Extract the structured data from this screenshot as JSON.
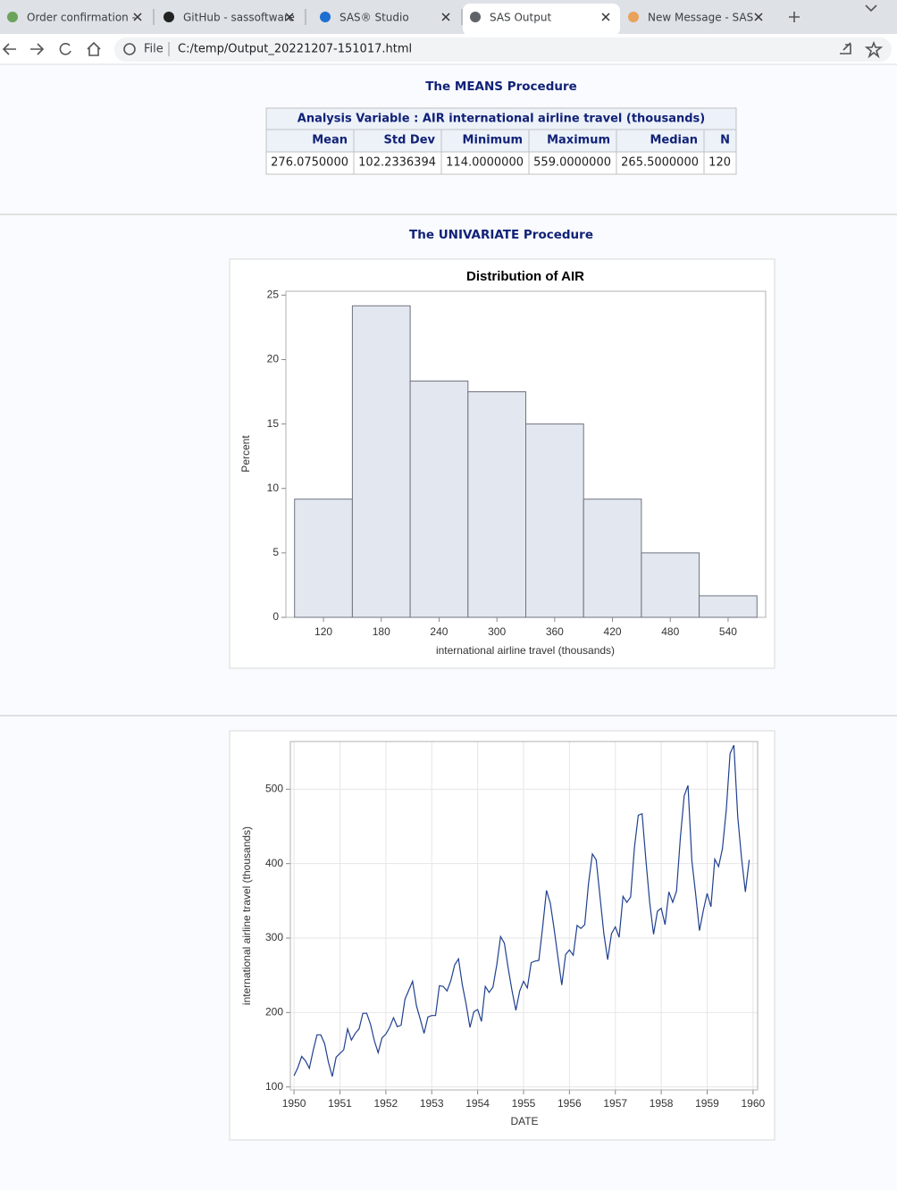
{
  "browser": {
    "tabs": [
      "Order confirmation -",
      "GitHub - sassoftware",
      "SAS® Studio",
      "SAS Output",
      "New Message - SAS"
    ],
    "file_label": "File",
    "url": "C:/temp/Output_20221207-151017.html"
  },
  "means": {
    "title": "The MEANS Procedure",
    "table": {
      "caption": "Analysis Variable : AIR international airline travel (thousands)",
      "headers": [
        "Mean",
        "Std Dev",
        "Minimum",
        "Maximum",
        "Median",
        "N"
      ],
      "rows": [
        [
          "276.0750000",
          "102.2336394",
          "114.0000000",
          "559.0000000",
          "265.5000000",
          "120"
        ]
      ]
    }
  },
  "univariate": {
    "title": "The UNIVARIATE Procedure"
  },
  "chart_data": [
    {
      "type": "histogram",
      "title": "Distribution of AIR",
      "x_label": "international airline travel (thousands)",
      "y_label": "Percent",
      "bins": [
        90,
        150,
        210,
        270,
        330,
        390,
        450,
        510,
        570
      ],
      "values": [
        9.17,
        24.17,
        18.33,
        17.5,
        15,
        9.17,
        5,
        1.67
      ],
      "color": "#e3e7ef",
      "edge_color": "#6e7380",
      "xlim": [
        81,
        579
      ],
      "xticks": [
        120,
        180,
        240,
        300,
        360,
        420,
        480,
        540
      ],
      "ylim": [
        0,
        25.3
      ],
      "yticks": [
        0,
        5,
        10,
        15,
        20,
        25
      ],
      "grid": false
    },
    {
      "type": "line",
      "x_label": "DATE",
      "y_label": "international airline travel (thousands)",
      "color": "#20408f",
      "x": [
        1950,
        1950.083,
        1950.167,
        1950.25,
        1950.333,
        1950.417,
        1950.5,
        1950.583,
        1950.667,
        1950.75,
        1950.833,
        1950.917,
        1951,
        1951.083,
        1951.167,
        1951.25,
        1951.333,
        1951.417,
        1951.5,
        1951.583,
        1951.667,
        1951.75,
        1951.833,
        1951.917,
        1952,
        1952.083,
        1952.167,
        1952.25,
        1952.333,
        1952.417,
        1952.5,
        1952.583,
        1952.667,
        1952.75,
        1952.833,
        1952.917,
        1953,
        1953.083,
        1953.167,
        1953.25,
        1953.333,
        1953.417,
        1953.5,
        1953.583,
        1953.667,
        1953.75,
        1953.833,
        1953.917,
        1954,
        1954.083,
        1954.167,
        1954.25,
        1954.333,
        1954.417,
        1954.5,
        1954.583,
        1954.667,
        1954.75,
        1954.833,
        1954.917,
        1955,
        1955.083,
        1955.167,
        1955.25,
        1955.333,
        1955.417,
        1955.5,
        1955.583,
        1955.667,
        1955.75,
        1955.833,
        1955.917,
        1956,
        1956.083,
        1956.167,
        1956.25,
        1956.333,
        1956.417,
        1956.5,
        1956.583,
        1956.667,
        1956.75,
        1956.833,
        1956.917,
        1957,
        1957.083,
        1957.167,
        1957.25,
        1957.333,
        1957.417,
        1957.5,
        1957.583,
        1957.667,
        1957.75,
        1957.833,
        1957.917,
        1958,
        1958.083,
        1958.167,
        1958.25,
        1958.333,
        1958.417,
        1958.5,
        1958.583,
        1958.667,
        1958.75,
        1958.833,
        1958.917,
        1959,
        1959.083,
        1959.167,
        1959.25,
        1959.333,
        1959.417,
        1959.5,
        1959.583,
        1959.667,
        1959.75,
        1959.833,
        1959.917
      ],
      "values": [
        115,
        126,
        141,
        135,
        125,
        149,
        170,
        170,
        158,
        133,
        114,
        140,
        145,
        150,
        178,
        163,
        172,
        178,
        199,
        199,
        184,
        162,
        146,
        166,
        171,
        180,
        193,
        181,
        183,
        218,
        230,
        242,
        209,
        191,
        172,
        194,
        196,
        196,
        236,
        235,
        229,
        243,
        264,
        272,
        237,
        211,
        180,
        201,
        204,
        188,
        235,
        227,
        234,
        264,
        302,
        293,
        259,
        229,
        203,
        229,
        242,
        233,
        267,
        269,
        270,
        315,
        364,
        347,
        312,
        274,
        237,
        278,
        284,
        277,
        317,
        313,
        318,
        374,
        413,
        405,
        355,
        306,
        271,
        306,
        315,
        301,
        356,
        348,
        355,
        422,
        465,
        467,
        404,
        347,
        305,
        336,
        340,
        318,
        362,
        348,
        363,
        435,
        491,
        505,
        404,
        359,
        310,
        337,
        360,
        342,
        406,
        396,
        420,
        472,
        548,
        559,
        463,
        407,
        362,
        405
      ],
      "xlim": [
        1949.92,
        1960.1
      ],
      "xticks": [
        1950,
        1951,
        1952,
        1953,
        1954,
        1955,
        1956,
        1957,
        1958,
        1959,
        1960
      ],
      "ylim": [
        96,
        564
      ],
      "yticks": [
        100,
        200,
        300,
        400,
        500
      ],
      "grid": true
    }
  ]
}
